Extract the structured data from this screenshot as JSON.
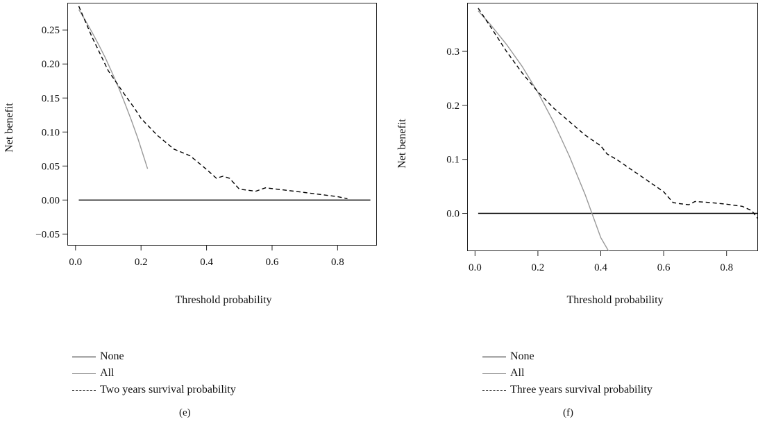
{
  "chart_data": [
    {
      "type": "line",
      "panel_label": "(e)",
      "xlabel": "Threshold probability",
      "ylabel": "Net benefit",
      "xlim": [
        -0.025,
        0.92
      ],
      "ylim": [
        -0.067,
        0.29
      ],
      "x_ticks": [
        0.0,
        0.2,
        0.4,
        0.6,
        0.8
      ],
      "x_tick_labels": [
        "0.0",
        "0.2",
        "0.4",
        "0.6",
        "0.8"
      ],
      "y_ticks": [
        -0.05,
        0.0,
        0.05,
        0.1,
        0.15,
        0.2,
        0.25
      ],
      "y_tick_labels": [
        "−0.05",
        "0.00",
        "0.05",
        "0.10",
        "0.15",
        "0.20",
        "0.25"
      ],
      "grid": false,
      "legend_position": "below",
      "series": [
        {
          "name": "None",
          "color": "#000000",
          "style": "solid",
          "x": [
            0.01,
            0.9
          ],
          "y": [
            0,
            0
          ]
        },
        {
          "name": "All",
          "color": "#999999",
          "style": "solid",
          "x": [
            0.01,
            0.03,
            0.05,
            0.07,
            0.09,
            0.11,
            0.13,
            0.15,
            0.17,
            0.19,
            0.21,
            0.22
          ],
          "y": [
            0.28,
            0.264,
            0.247,
            0.229,
            0.21,
            0.189,
            0.167,
            0.143,
            0.118,
            0.091,
            0.061,
            0.046
          ]
        },
        {
          "name": "Two years survival probability",
          "color": "#000000",
          "style": "dashed",
          "x": [
            0.01,
            0.05,
            0.1,
            0.15,
            0.18,
            0.2,
            0.25,
            0.3,
            0.35,
            0.4,
            0.43,
            0.45,
            0.47,
            0.5,
            0.55,
            0.58,
            0.65,
            0.7,
            0.75,
            0.8,
            0.83
          ],
          "y": [
            0.285,
            0.24,
            0.19,
            0.155,
            0.135,
            0.12,
            0.095,
            0.075,
            0.065,
            0.045,
            0.032,
            0.035,
            0.032,
            0.016,
            0.013,
            0.018,
            0.014,
            0.011,
            0.008,
            0.005,
            0.002
          ]
        }
      ]
    },
    {
      "type": "line",
      "panel_label": "(f)",
      "xlabel": "Threshold probability",
      "ylabel": "Net benefit",
      "xlim": [
        -0.025,
        0.9
      ],
      "ylim": [
        -0.07,
        0.39
      ],
      "x_ticks": [
        0.0,
        0.2,
        0.4,
        0.6,
        0.8
      ],
      "x_tick_labels": [
        "0.0",
        "0.2",
        "0.4",
        "0.6",
        "0.8"
      ],
      "y_ticks": [
        0.0,
        0.1,
        0.2,
        0.3
      ],
      "y_tick_labels": [
        "0.0",
        "0.1",
        "0.2",
        "0.3"
      ],
      "grid": false,
      "legend_position": "below",
      "series": [
        {
          "name": "None",
          "color": "#000000",
          "style": "solid",
          "x": [
            0.01,
            0.9
          ],
          "y": [
            0,
            0
          ]
        },
        {
          "name": "All",
          "color": "#999999",
          "style": "solid",
          "x": [
            0.01,
            0.05,
            0.1,
            0.15,
            0.2,
            0.25,
            0.3,
            0.35,
            0.4,
            0.43
          ],
          "y": [
            0.375,
            0.349,
            0.313,
            0.272,
            0.224,
            0.169,
            0.106,
            0.035,
            -0.045,
            -0.075
          ]
        },
        {
          "name": "Three years survival probability",
          "color": "#000000",
          "style": "dashed",
          "x": [
            0.01,
            0.05,
            0.1,
            0.15,
            0.2,
            0.25,
            0.3,
            0.35,
            0.4,
            0.42,
            0.45,
            0.5,
            0.55,
            0.6,
            0.63,
            0.65,
            0.68,
            0.7,
            0.75,
            0.8,
            0.85,
            0.88,
            0.9
          ],
          "y": [
            0.38,
            0.345,
            0.3,
            0.26,
            0.225,
            0.195,
            0.17,
            0.145,
            0.125,
            0.11,
            0.1,
            0.08,
            0.06,
            0.04,
            0.02,
            0.018,
            0.016,
            0.022,
            0.02,
            0.017,
            0.013,
            0.005,
            -0.01
          ]
        }
      ]
    }
  ]
}
